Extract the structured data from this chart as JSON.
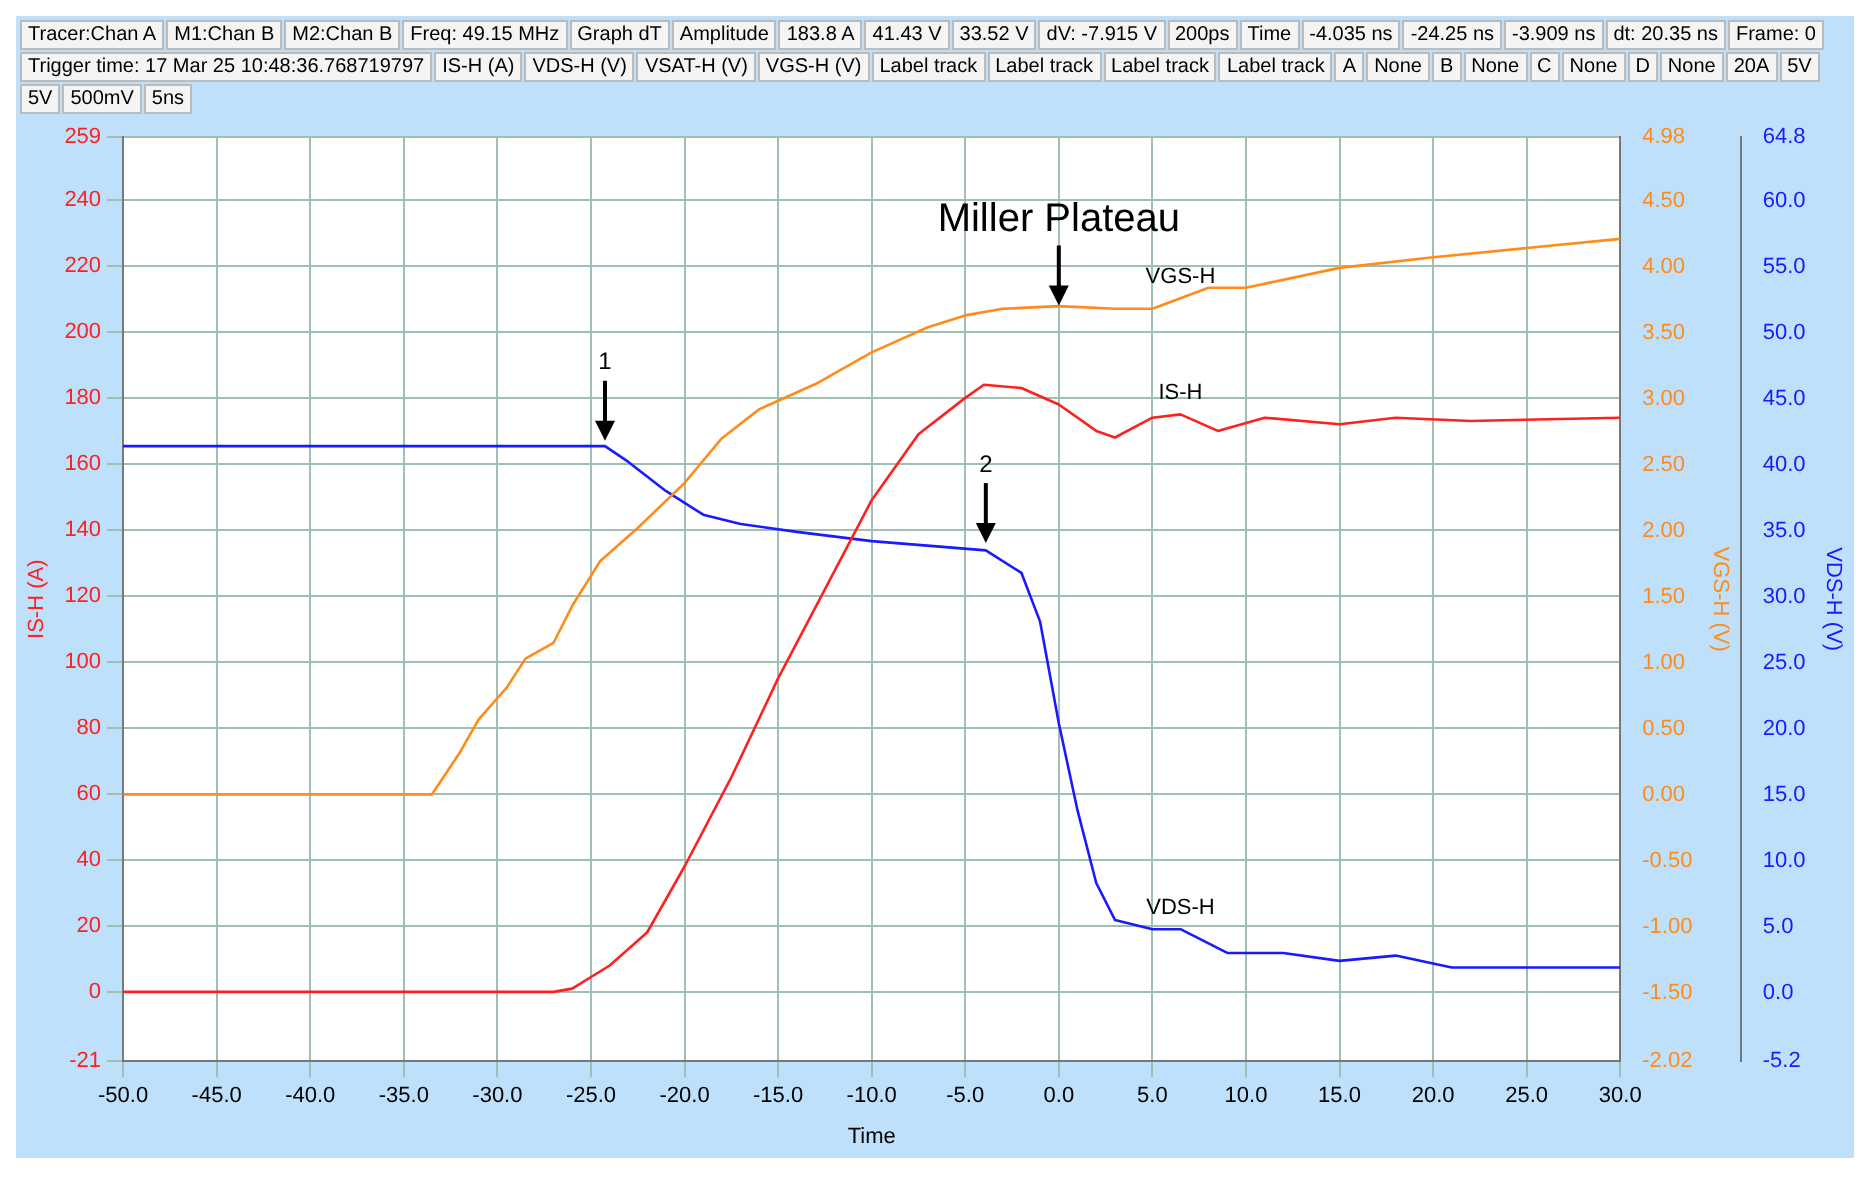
{
  "chart_data": {
    "type": "line",
    "xlabel": "Time",
    "ylabel": "IS-H (A)",
    "y2label": "VGS-H (V)",
    "y3label": "VDS-H (V)",
    "grid": true,
    "xlim": [
      -50,
      30
    ],
    "xticks": [
      {
        "value": -50,
        "label": "-50.0"
      },
      {
        "value": -45,
        "label": "-45.0"
      },
      {
        "value": -40,
        "label": "-40.0"
      },
      {
        "value": -35,
        "label": "-35.0"
      },
      {
        "value": -30,
        "label": "-30.0"
      },
      {
        "value": -25,
        "label": "-25.0"
      },
      {
        "value": -20,
        "label": "-20.0"
      },
      {
        "value": -15,
        "label": "-15.0"
      },
      {
        "value": -10,
        "label": "-10.0"
      },
      {
        "value": -5,
        "label": "-5.0"
      },
      {
        "value": 0,
        "label": "0.0"
      },
      {
        "value": 5,
        "label": "5.0"
      },
      {
        "value": 10,
        "label": "10.0"
      },
      {
        "value": 15,
        "label": "15.0"
      },
      {
        "value": 20,
        "label": "20.0"
      },
      {
        "value": 25,
        "label": "25.0"
      },
      {
        "value": 30,
        "label": "30.0"
      }
    ],
    "ylim": [
      -21,
      259
    ],
    "yticks": [
      -21,
      0,
      20,
      40,
      60,
      80,
      100,
      120,
      140,
      160,
      180,
      200,
      220,
      240,
      259
    ],
    "y2lim": [
      -2.02,
      4.98
    ],
    "y2ticks": [
      -2.02,
      {
        "value": -1.5,
        "label": "-1.50"
      },
      {
        "value": -1,
        "label": "-1.00"
      },
      {
        "value": -0.5,
        "label": "-0.50"
      },
      {
        "value": 0,
        "label": "0.00"
      },
      {
        "value": 0.5,
        "label": "0.50"
      },
      {
        "value": 1,
        "label": "1.00"
      },
      {
        "value": 1.5,
        "label": "1.50"
      },
      {
        "value": 2,
        "label": "2.00"
      },
      {
        "value": 2.5,
        "label": "2.50"
      },
      {
        "value": 3,
        "label": "3.00"
      },
      {
        "value": 3.5,
        "label": "3.50"
      },
      {
        "value": 4,
        "label": "4.00"
      },
      {
        "value": 4.5,
        "label": "4.50"
      },
      4.98
    ],
    "y3lim": [
      -5.2,
      64.8
    ],
    "y3ticks": [
      -5.2,
      {
        "value": 0,
        "label": "0.0"
      },
      {
        "value": 5,
        "label": "5.0"
      },
      {
        "value": 10,
        "label": "10.0"
      },
      {
        "value": 15,
        "label": "15.0"
      },
      {
        "value": 20,
        "label": "20.0"
      },
      {
        "value": 25,
        "label": "25.0"
      },
      {
        "value": 30,
        "label": "30.0"
      },
      {
        "value": 35,
        "label": "35.0"
      },
      {
        "value": 40,
        "label": "40.0"
      },
      {
        "value": 45,
        "label": "45.0"
      },
      {
        "value": 50,
        "label": "50.0"
      },
      {
        "value": 55,
        "label": "55.0"
      },
      {
        "value": 60,
        "label": "60.0"
      },
      64.8
    ],
    "series": [
      {
        "name": "IS-H",
        "color": "#ff2020",
        "x": [
          -50,
          -27,
          -26,
          -24,
          -22,
          -20,
          -17.5,
          -15,
          -12.5,
          -10,
          -7.5,
          -5,
          -4,
          -2,
          0,
          2,
          3,
          5,
          6.5,
          8.5,
          11,
          15,
          18,
          22,
          30
        ],
        "values": [
          0,
          0,
          1,
          8,
          18,
          38,
          65,
          95,
          122,
          149,
          169,
          180,
          184,
          183,
          178,
          170,
          168,
          174,
          175,
          170,
          174,
          172,
          174,
          173,
          174
        ]
      },
      {
        "name": "VGS-H",
        "color": "#ff8c1a",
        "axis": "y2",
        "x": [
          -50,
          -33.5,
          -32,
          -31,
          -29.5,
          -28.5,
          -27,
          -26,
          -24.5,
          -22.5,
          -20,
          -18,
          -16,
          -13,
          -10,
          -7,
          -5,
          -3,
          0,
          3,
          5,
          6.5,
          8,
          10,
          15,
          20,
          25,
          30
        ],
        "values": [
          0,
          0,
          0.32,
          0.57,
          0.81,
          1.03,
          1.15,
          1.43,
          1.77,
          2.02,
          2.36,
          2.7,
          2.92,
          3.11,
          3.35,
          3.54,
          3.63,
          3.68,
          3.7,
          3.68,
          3.68,
          3.76,
          3.84,
          3.84,
          3.99,
          4.07,
          4.14,
          4.21
        ]
      },
      {
        "name": "VDS-H",
        "color": "#1a1aff",
        "axis": "y3",
        "x": [
          -50,
          -24.25,
          -23,
          -21,
          -19,
          -17,
          -14,
          -10,
          -3.9,
          -2,
          -1,
          0,
          1,
          2,
          3,
          5,
          6.5,
          9,
          12,
          15,
          18,
          21,
          30
        ],
        "values": [
          41.4,
          41.4,
          40.2,
          38,
          36.2,
          35.5,
          34.9,
          34.2,
          33.5,
          31.8,
          28.1,
          20.4,
          13.8,
          8.3,
          5.5,
          4.8,
          4.8,
          3,
          3,
          2.4,
          2.8,
          1.9,
          1.9
        ]
      }
    ],
    "annotations": [
      {
        "text": "Miller Plateau",
        "x": 0,
        "y": 208
      },
      {
        "text": "1",
        "x": -24.25,
        "y": 167
      },
      {
        "text": "2",
        "x": -3.9,
        "y": 136
      },
      "Tracer:Chan A",
      "M1:Chan B",
      "M2:Chan B",
      "Freq: 49.15 MHz",
      "Graph dT",
      "Amplitude",
      "183.8 A",
      "41.43 V",
      "33.52 V",
      "dV: -7.915 V",
      "200ps",
      "Time",
      "-4.035 ns",
      "-24.25 ns",
      "-3.909 ns",
      "dt:  20.35 ns",
      "Frame: 0",
      "Trigger time: 17 Mar 25 10:48:36.768719797",
      "IS-H (A)",
      "VDS-H (V)",
      "VSAT-H (V)",
      "VGS-H (V)",
      "Label track",
      "Label track",
      "Label track",
      "Label track",
      "A",
      "None",
      "B",
      "None",
      "C",
      "None",
      "D",
      "None",
      "20A",
      "5V",
      "5V",
      "500mV",
      "5ns"
    ]
  }
}
